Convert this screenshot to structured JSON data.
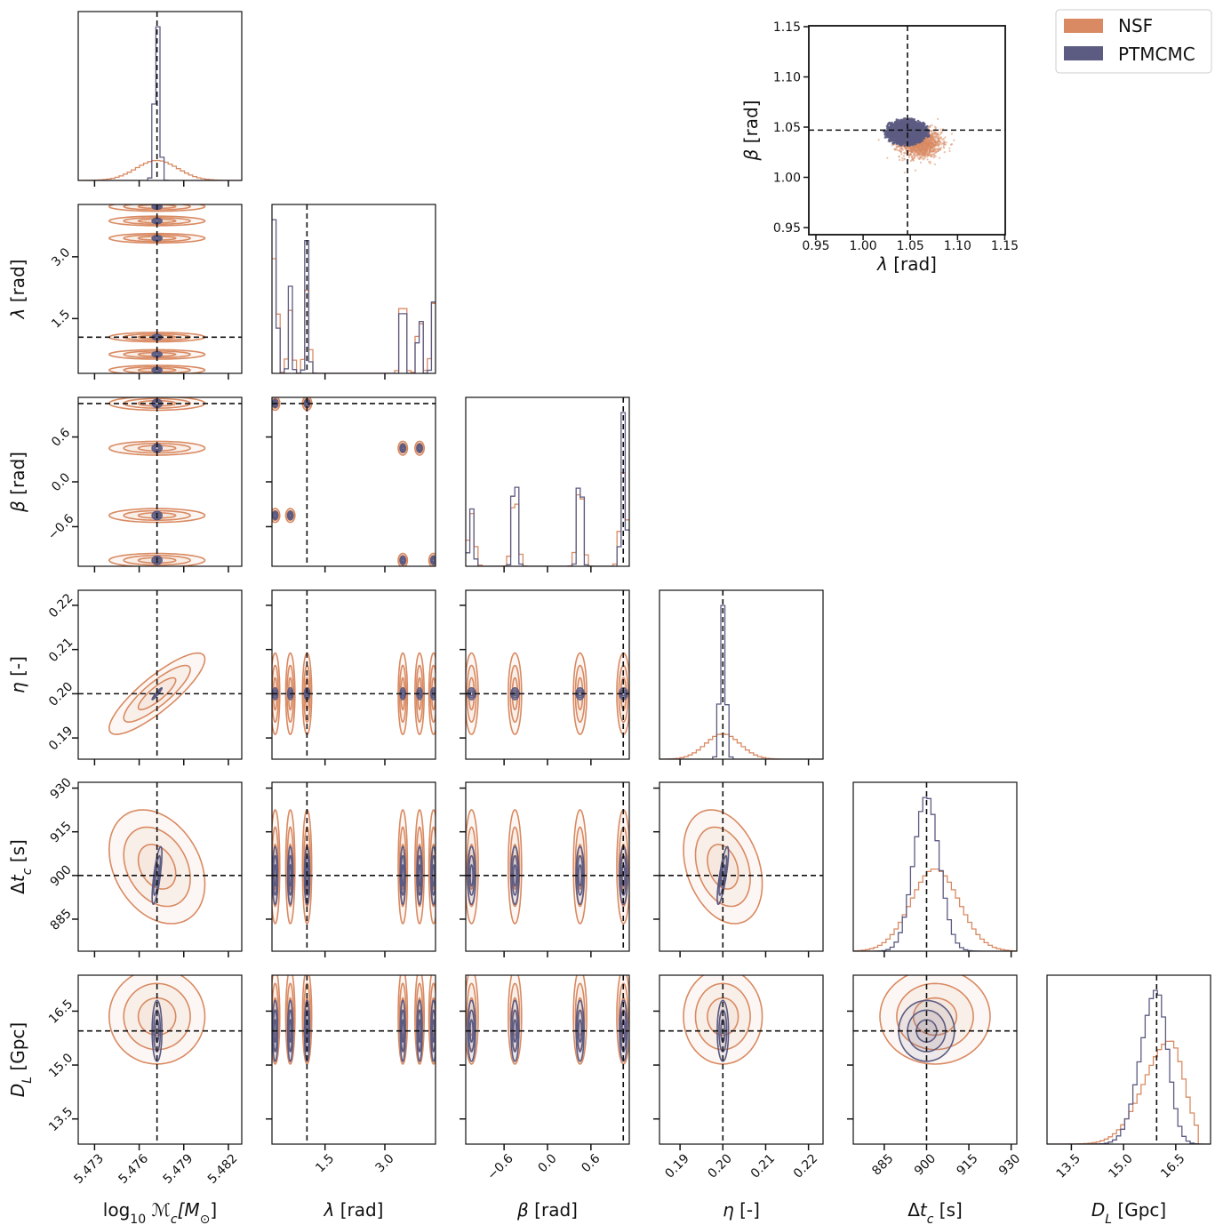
{
  "legend": {
    "placement": "top-right",
    "items": [
      {
        "label": "NSF",
        "color": "#d98a62"
      },
      {
        "label": "PTMCMC",
        "color": "#5c5b82"
      }
    ]
  },
  "chart_data": {
    "type": "corner",
    "grid": false,
    "series": [
      {
        "name": "NSF",
        "color": "#d98a62"
      },
      {
        "name": "PTMCMC",
        "color": "#5c5b82"
      }
    ],
    "truth_color": "#111111",
    "parameters": [
      {
        "key": "Mc",
        "label": [
          {
            "t": "log"
          },
          {
            "t": "10",
            "sub": true
          },
          {
            "t": " ℳ",
            "it": true
          },
          {
            "t": "c",
            "sub": true,
            "it": true
          },
          {
            "t": "[M",
            "it": true
          },
          {
            "t": "⊙",
            "sub": true
          },
          {
            "t": "]"
          }
        ],
        "range": [
          5.4719,
          5.4829
        ],
        "ticks": [
          5.473,
          5.476,
          5.479,
          5.482
        ],
        "tick_labels": [
          "5.473",
          "5.476",
          "5.479",
          "5.482"
        ],
        "truth": 5.4772,
        "NSF": {
          "components": [
            {
              "mean": 5.4772,
              "sigma_left": 0.0014,
              "sigma_right": 0.0014,
              "weight": 1
            }
          ]
        },
        "PTMCMC": {
          "components": [
            {
              "mean": 5.4772,
              "sigma_left": 0.00015,
              "sigma_right": 0.00015,
              "weight": 1
            }
          ]
        }
      },
      {
        "key": "lambda",
        "label": [
          {
            "t": "λ",
            "it": true
          },
          {
            "t": " [rad]"
          }
        ],
        "range": [
          0.17,
          4.27
        ],
        "ticks": [
          1.5,
          3.0
        ],
        "tick_labels": [
          "1.5",
          "3.0"
        ],
        "truth": 1.047,
        "multimodal": true,
        "NSF": {
          "mode_sigma": 0.05
        },
        "PTMCMC": {
          "mode_sigma": 0.03
        }
      },
      {
        "key": "beta",
        "label": [
          {
            "t": "β",
            "it": true
          },
          {
            "t": " [rad]"
          }
        ],
        "range": [
          -1.13,
          1.13
        ],
        "ticks": [
          -0.6,
          0.0,
          0.6
        ],
        "tick_labels": [
          "−0.6",
          "0.0",
          "0.6"
        ],
        "truth": 1.047,
        "multimodal": true,
        "NSF": {
          "mode_sigma": 0.04
        },
        "PTMCMC": {
          "mode_sigma": 0.025
        }
      },
      {
        "key": "eta",
        "label": [
          {
            "t": "η",
            "it": true
          },
          {
            "t": " [-]"
          }
        ],
        "range": [
          0.1852,
          0.2234
        ],
        "ticks": [
          0.19,
          0.2,
          0.21,
          0.22
        ],
        "tick_labels": [
          "0.19",
          "0.20",
          "0.21",
          "0.22"
        ],
        "truth": 0.2,
        "NSF": {
          "components": [
            {
              "mean": 0.2,
              "sigma_left": 0.004,
              "sigma_right": 0.004,
              "weight": 1
            }
          ]
        },
        "PTMCMC": {
          "components": [
            {
              "mean": 0.2,
              "sigma_left": 0.0006,
              "sigma_right": 0.0006,
              "weight": 1
            }
          ]
        }
      },
      {
        "key": "dtc",
        "label": [
          {
            "t": "Δ"
          },
          {
            "t": "t",
            "it": true
          },
          {
            "t": "c",
            "sub": true,
            "it": true
          },
          {
            "t": " [s]"
          }
        ],
        "range": [
          874,
          932
        ],
        "ticks": [
          885,
          900,
          915,
          930
        ],
        "tick_labels": [
          "885",
          "900",
          "915",
          "930"
        ],
        "truth": 900,
        "NSF": {
          "components": [
            {
              "mean": 903,
              "sigma_left": 8.5,
              "sigma_right": 8.5,
              "weight": 1
            }
          ]
        },
        "PTMCMC": {
          "components": [
            {
              "mean": 900,
              "sigma_left": 4.5,
              "sigma_right": 4.5,
              "weight": 1
            }
          ]
        }
      },
      {
        "key": "DL",
        "label": [
          {
            "t": "D",
            "it": true
          },
          {
            "t": "L",
            "sub": true,
            "it": true
          },
          {
            "t": " [Gpc]"
          }
        ],
        "range": [
          12.8,
          17.5
        ],
        "ticks": [
          13.5,
          15.0,
          16.5
        ],
        "tick_labels": [
          "13.5",
          "15.0",
          "16.5"
        ],
        "truth": 15.95,
        "NSF": {
          "components": [
            {
              "mean": 16.35,
              "sigma_left": 0.75,
              "sigma_right": 0.4,
              "weight": 1
            }
          ],
          "upper_cutoff": 17.05
        },
        "PTMCMC": {
          "components": [
            {
              "mean": 15.95,
              "sigma_left": 0.45,
              "sigma_right": 0.32,
              "weight": 1
            }
          ],
          "upper_cutoff": 17.2
        }
      }
    ],
    "joint_modes_lambda_beta": [
      {
        "lambda": 0.25,
        "beta": 1.05,
        "NSF": 0.5,
        "PTMCMC": 0.5
      },
      {
        "lambda": 1.05,
        "beta": 1.05,
        "NSF": 0.6,
        "PTMCMC": 0.68
      },
      {
        "lambda": 0.25,
        "beta": -0.45,
        "NSF": 0.42,
        "PTMCMC": 0.42
      },
      {
        "lambda": 0.63,
        "beta": -0.45,
        "NSF": 0.45,
        "PTMCMC": 0.44
      },
      {
        "lambda": 3.45,
        "beta": 0.45,
        "NSF": 0.55,
        "PTMCMC": 0.47
      },
      {
        "lambda": 3.87,
        "beta": 0.45,
        "NSF": 0.45,
        "PTMCMC": 0.38
      },
      {
        "lambda": 3.45,
        "beta": -1.05,
        "NSF": 0.12,
        "PTMCMC": 0.08
      },
      {
        "lambda": 4.22,
        "beta": -1.05,
        "NSF": 0.5,
        "PTMCMC": 0.36
      }
    ],
    "correlations": [
      {
        "x": "Mc",
        "y": "eta",
        "NSF": 0.85,
        "PTMCMC": 0.95
      },
      {
        "x": "Mc",
        "y": "dtc",
        "NSF": -0.3,
        "PTMCMC": 0.75
      },
      {
        "x": "eta",
        "y": "dtc",
        "NSF": -0.3,
        "PTMCMC": 0.8
      }
    ],
    "inset": {
      "type": "scatter",
      "xlabel": [
        {
          "t": "λ",
          "it": true
        },
        {
          "t": " [rad]"
        }
      ],
      "ylabel": [
        {
          "t": "β",
          "it": true
        },
        {
          "t": " [rad]"
        }
      ],
      "xlim": [
        0.9425,
        1.1505
      ],
      "ylim": [
        0.9429,
        1.1509
      ],
      "ticks": [
        0.95,
        1.0,
        1.05,
        1.1,
        1.15
      ],
      "tick_labels": [
        "0.95",
        "1.00",
        "1.05",
        "1.10",
        "1.15"
      ],
      "truth": [
        1.047,
        1.047
      ],
      "NSF": {
        "mean": [
          1.061,
          1.034
        ],
        "sigma": [
          0.011,
          0.007
        ]
      },
      "PTMCMC": {
        "mean": [
          1.046,
          1.045
        ],
        "sigma": [
          0.009,
          0.005
        ]
      }
    }
  }
}
